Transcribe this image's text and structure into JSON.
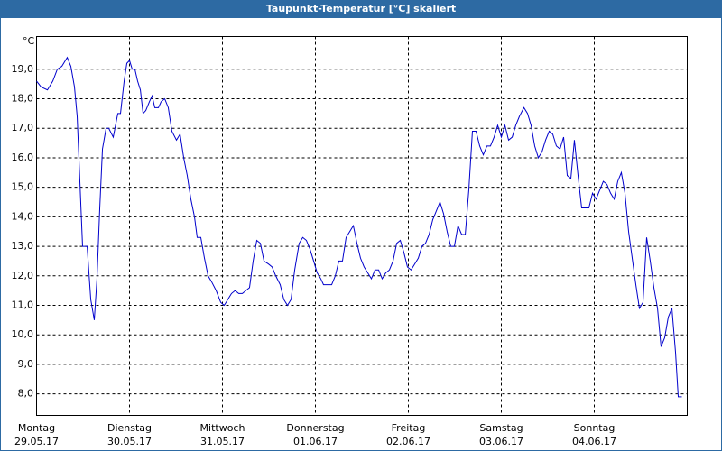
{
  "chart_data": {
    "type": "line",
    "title": "Taupunkt-Temperatur [°C] skaliert",
    "y_unit": "°C",
    "color": "#0000cc",
    "grid": true,
    "xlim": [
      0,
      7
    ],
    "ylim": [
      7.27,
      20.11
    ],
    "xticks": [
      {
        "value": 0,
        "label": [
          "Montag",
          "29.05.17"
        ]
      },
      {
        "value": 1,
        "label": [
          "Dienstag",
          "30.05.17"
        ]
      },
      {
        "value": 2,
        "label": [
          "Mittwoch",
          "31.05.17"
        ]
      },
      {
        "value": 3,
        "label": [
          "Donnerstag",
          "01.06.17"
        ]
      },
      {
        "value": 4,
        "label": [
          "Freitag",
          "02.06.17"
        ]
      },
      {
        "value": 5,
        "label": [
          "Samstag",
          "03.06.17"
        ]
      },
      {
        "value": 6,
        "label": [
          "Sonntag",
          "04.06.17"
        ]
      }
    ],
    "yticks": [
      {
        "value": 8,
        "label": "8,0"
      },
      {
        "value": 9,
        "label": "9,0"
      },
      {
        "value": 10,
        "label": "10,0"
      },
      {
        "value": 11,
        "label": "11,0"
      },
      {
        "value": 12,
        "label": "12,0"
      },
      {
        "value": 13,
        "label": "13,0"
      },
      {
        "value": 14,
        "label": "14,0"
      },
      {
        "value": 15,
        "label": "15,0"
      },
      {
        "value": 16,
        "label": "16,0"
      },
      {
        "value": 17,
        "label": "17,0"
      },
      {
        "value": 18,
        "label": "18,0"
      },
      {
        "value": 19,
        "label": "19,0"
      }
    ],
    "x": [
      0,
      0.049,
      0.117,
      0.175,
      0.223,
      0.272,
      0.33,
      0.369,
      0.408,
      0.437,
      0.466,
      0.495,
      0.544,
      0.583,
      0.621,
      0.65,
      0.68,
      0.709,
      0.748,
      0.777,
      0.825,
      0.874,
      0.903,
      0.942,
      0.971,
      1.0,
      1.029,
      1.058,
      1.087,
      1.117,
      1.146,
      1.175,
      1.214,
      1.243,
      1.272,
      1.311,
      1.34,
      1.379,
      1.417,
      1.456,
      1.505,
      1.544,
      1.583,
      1.621,
      1.66,
      1.699,
      1.728,
      1.767,
      1.806,
      1.845,
      1.883,
      1.932,
      1.981,
      2.019,
      2.058,
      2.097,
      2.136,
      2.175,
      2.214,
      2.252,
      2.291,
      2.33,
      2.369,
      2.408,
      2.447,
      2.495,
      2.534,
      2.573,
      2.621,
      2.66,
      2.699,
      2.738,
      2.777,
      2.825,
      2.864,
      2.903,
      2.942,
      2.981,
      3.019,
      3.058,
      3.087,
      3.136,
      3.175,
      3.214,
      3.252,
      3.291,
      3.33,
      3.369,
      3.408,
      3.447,
      3.485,
      3.524,
      3.563,
      3.602,
      3.641,
      3.68,
      3.718,
      3.757,
      3.796,
      3.835,
      3.874,
      3.913,
      3.951,
      3.99,
      4.029,
      4.068,
      4.107,
      4.146,
      4.184,
      4.223,
      4.262,
      4.301,
      4.34,
      4.379,
      4.417,
      4.456,
      4.495,
      4.534,
      4.573,
      4.612,
      4.65,
      4.689,
      4.728,
      4.767,
      4.806,
      4.845,
      4.883,
      4.922,
      4.961,
      5.0,
      5.039,
      5.078,
      5.117,
      5.155,
      5.194,
      5.243,
      5.282,
      5.32,
      5.359,
      5.398,
      5.437,
      5.476,
      5.515,
      5.553,
      5.592,
      5.631,
      5.67,
      5.709,
      5.748,
      5.786,
      5.825,
      5.864,
      5.903,
      5.942,
      5.981,
      6.019,
      6.058,
      6.097,
      6.136,
      6.175,
      6.214,
      6.252,
      6.291,
      6.33,
      6.369,
      6.408,
      6.447,
      6.485,
      6.524,
      6.563,
      6.602,
      6.641,
      6.68,
      6.718,
      6.757,
      6.796,
      6.835,
      6.874,
      6.903,
      6.942
    ],
    "values": [
      18.6,
      18.4,
      18.3,
      18.6,
      19.0,
      19.1,
      19.4,
      19.1,
      18.4,
      17.4,
      15.2,
      13.0,
      13.0,
      11.2,
      10.5,
      11.9,
      14.3,
      16.3,
      17.0,
      17.0,
      16.7,
      17.5,
      17.5,
      18.6,
      19.2,
      19.3,
      19.0,
      19.0,
      18.6,
      18.3,
      17.5,
      17.6,
      17.9,
      18.1,
      17.7,
      17.7,
      17.9,
      18.0,
      17.7,
      16.9,
      16.6,
      16.8,
      16.0,
      15.4,
      14.6,
      14.0,
      13.3,
      13.3,
      12.6,
      12.0,
      11.8,
      11.5,
      11.1,
      11.0,
      11.2,
      11.4,
      11.5,
      11.4,
      11.4,
      11.5,
      11.6,
      12.5,
      13.2,
      13.1,
      12.5,
      12.4,
      12.3,
      12.0,
      11.7,
      11.2,
      11.0,
      11.2,
      12.2,
      13.1,
      13.3,
      13.2,
      12.9,
      12.5,
      12.1,
      11.9,
      11.7,
      11.7,
      11.7,
      12.0,
      12.5,
      12.5,
      13.3,
      13.5,
      13.7,
      13.1,
      12.6,
      12.3,
      12.1,
      11.9,
      12.2,
      12.2,
      11.9,
      12.1,
      12.2,
      12.5,
      13.1,
      13.2,
      12.8,
      12.3,
      12.2,
      12.4,
      12.6,
      13.0,
      13.1,
      13.4,
      13.9,
      14.2,
      14.5,
      14.1,
      13.5,
      13.0,
      13.0,
      13.7,
      13.4,
      13.4,
      14.9,
      16.9,
      16.9,
      16.4,
      16.1,
      16.4,
      16.4,
      16.7,
      17.1,
      16.7,
      17.1,
      16.6,
      16.7,
      17.1,
      17.4,
      17.7,
      17.5,
      17.1,
      16.4,
      16.0,
      16.2,
      16.6,
      16.9,
      16.8,
      16.4,
      16.3,
      16.7,
      15.4,
      15.3,
      16.6,
      15.4,
      14.3,
      14.3,
      14.3,
      14.8,
      14.6,
      14.9,
      15.2,
      15.1,
      14.8,
      14.6,
      15.2,
      15.5,
      14.8,
      13.5,
      12.6,
      11.7,
      10.9,
      11.1,
      13.3,
      12.5,
      11.6,
      10.9,
      9.6,
      9.9,
      10.6,
      10.9,
      9.4,
      7.9,
      7.9
    ]
  }
}
